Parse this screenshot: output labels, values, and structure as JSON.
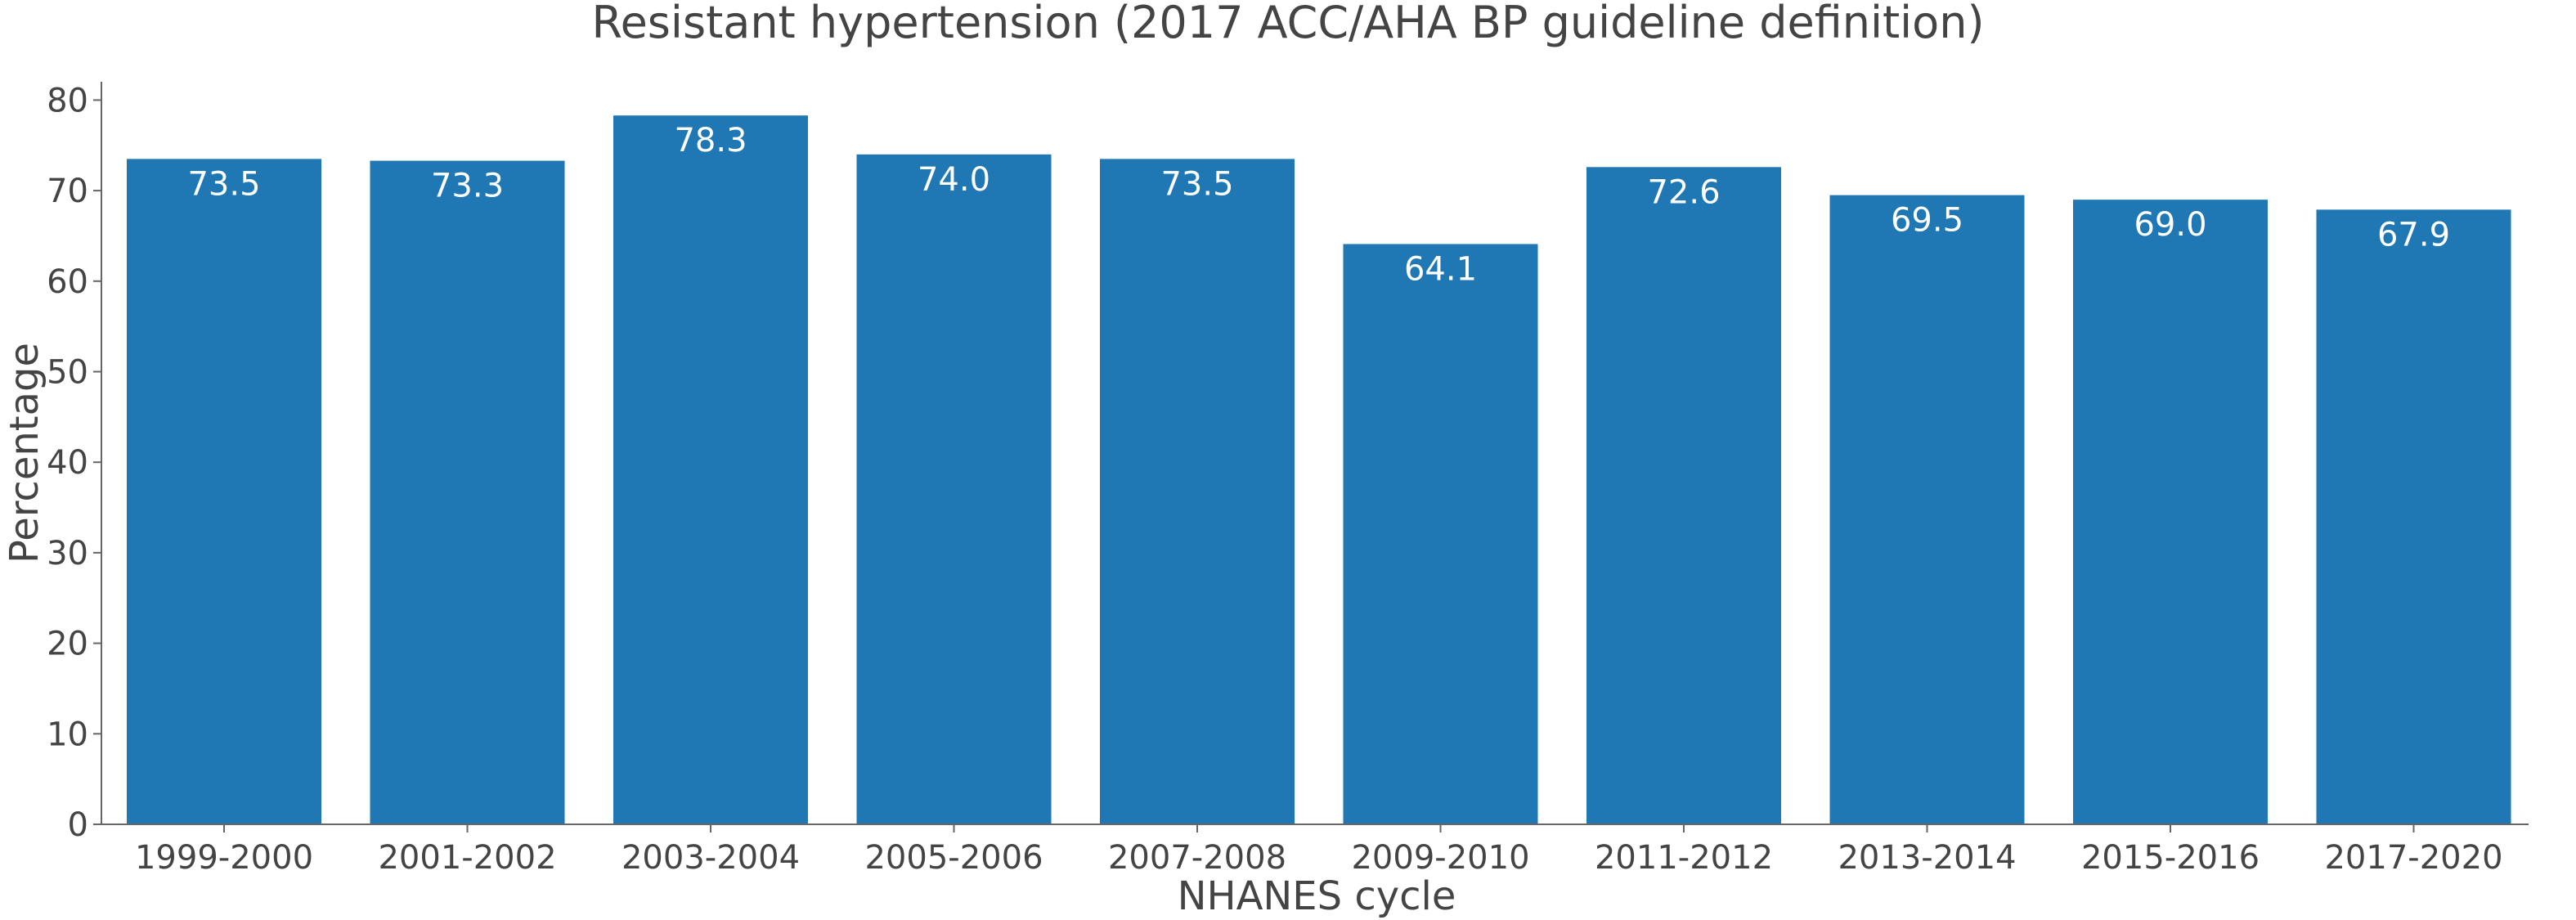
{
  "chart_data": {
    "type": "bar",
    "title": "Resistant hypertension (2017 ACC/AHA BP guideline definition)",
    "xlabel": "NHANES cycle",
    "ylabel": "Percentage",
    "categories": [
      "1999-2000",
      "2001-2002",
      "2003-2004",
      "2005-2006",
      "2007-2008",
      "2009-2010",
      "2011-2012",
      "2013-2014",
      "2015-2016",
      "2017-2020"
    ],
    "values": [
      73.5,
      73.3,
      78.3,
      74.0,
      73.5,
      64.1,
      72.6,
      69.5,
      69.0,
      67.9
    ],
    "data_labels": [
      "73.5",
      "73.3",
      "78.3",
      "74.0",
      "73.5",
      "64.1",
      "72.6",
      "69.5",
      "69.0",
      "67.9"
    ],
    "ylim": [
      0,
      82
    ],
    "yticks": [
      0,
      10,
      20,
      30,
      40,
      50,
      60,
      70,
      80
    ],
    "bar_color": "#1f77b4",
    "data_label_color": "#ffffff",
    "grid": false,
    "legend": "none"
  }
}
